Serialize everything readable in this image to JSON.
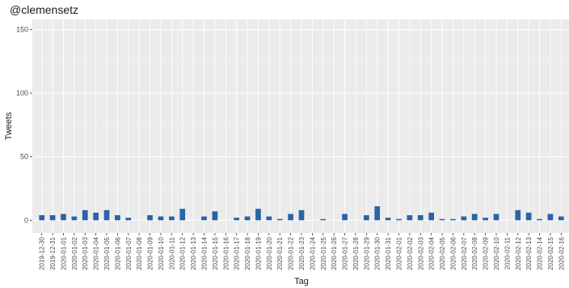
{
  "chart_data": {
    "type": "bar",
    "title": "@clemensetz",
    "xlabel": "Tag",
    "ylabel": "Tweets",
    "ylim": [
      -10,
      158
    ],
    "yticks": [
      0,
      50,
      100,
      150
    ],
    "grid": true,
    "categories": [
      "2019-12-30",
      "2019-12-31",
      "2020-01-01",
      "2020-01-02",
      "2020-01-03",
      "2020-01-04",
      "2020-01-05",
      "2020-01-06",
      "2020-01-07",
      "2020-01-08",
      "2020-01-09",
      "2020-01-10",
      "2020-01-11",
      "2020-01-12",
      "2020-01-13",
      "2020-01-14",
      "2020-01-15",
      "2020-01-16",
      "2020-01-17",
      "2020-01-18",
      "2020-01-19",
      "2020-01-20",
      "2020-01-21",
      "2020-01-22",
      "2020-01-23",
      "2020-01-24",
      "2020-01-25",
      "2020-01-26",
      "2020-01-27",
      "2020-01-28",
      "2020-01-29",
      "2020-01-30",
      "2020-01-31",
      "2020-02-01",
      "2020-02-02",
      "2020-02-03",
      "2020-02-04",
      "2020-02-05",
      "2020-02-06",
      "2020-02-07",
      "2020-02-08",
      "2020-02-09",
      "2020-02-10",
      "2020-02-11",
      "2020-02-12",
      "2020-02-13",
      "2020-02-14",
      "2020-02-15",
      "2020-02-16"
    ],
    "values": [
      4,
      4,
      5,
      3,
      8,
      6,
      8,
      4,
      2,
      0,
      4,
      3,
      3,
      9,
      0,
      3,
      7,
      0,
      2,
      3,
      9,
      3,
      1,
      5,
      8,
      0,
      1,
      0,
      5,
      0,
      4,
      11,
      2,
      1,
      4,
      4,
      6,
      1,
      1,
      3,
      5,
      2,
      5,
      0,
      8,
      6,
      1,
      5,
      3
    ],
    "colors": {
      "bar": "#2b63a6",
      "panel": "#ebebeb",
      "grid_major": "#ffffff",
      "grid_minor": "#f4f4f4",
      "text": "#4d4d4d"
    }
  }
}
